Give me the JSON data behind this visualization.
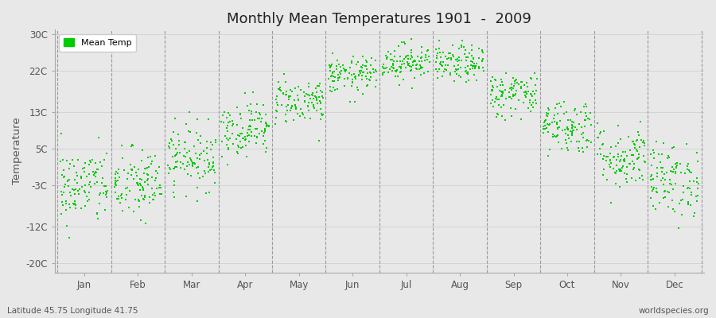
{
  "title": "Monthly Mean Temperatures 1901  -  2009",
  "ylabel": "Temperature",
  "subtitle_left": "Latitude 45.75 Longitude 41.75",
  "subtitle_right": "worldspecies.org",
  "dot_color": "#00CC00",
  "dot_size": 2.5,
  "bg_color": "#E8E8E8",
  "plot_bg_color": "#E8E8E8",
  "legend_label": "Mean Temp",
  "yticks": [
    -20,
    -12,
    -3,
    5,
    13,
    22,
    30
  ],
  "ytick_labels": [
    "-20C",
    "-12C",
    "-3C",
    "5C",
    "13C",
    "22C",
    "30C"
  ],
  "ylim": [
    -22,
    31
  ],
  "month_labels": [
    "Jan",
    "Feb",
    "Mar",
    "Apr",
    "May",
    "Jun",
    "Jul",
    "Aug",
    "Sep",
    "Oct",
    "Nov",
    "Dec"
  ],
  "mean_temps": [
    -3.2,
    -2.8,
    3.2,
    9.5,
    15.5,
    21.0,
    24.0,
    23.5,
    17.0,
    10.0,
    3.2,
    -1.8
  ],
  "std_temps": [
    4.2,
    4.0,
    3.5,
    3.0,
    2.5,
    2.0,
    2.0,
    2.0,
    2.5,
    3.0,
    3.5,
    4.0
  ],
  "n_years": 109,
  "seed": 42,
  "figwidth": 9.0,
  "figheight": 4.0,
  "dpi": 100
}
